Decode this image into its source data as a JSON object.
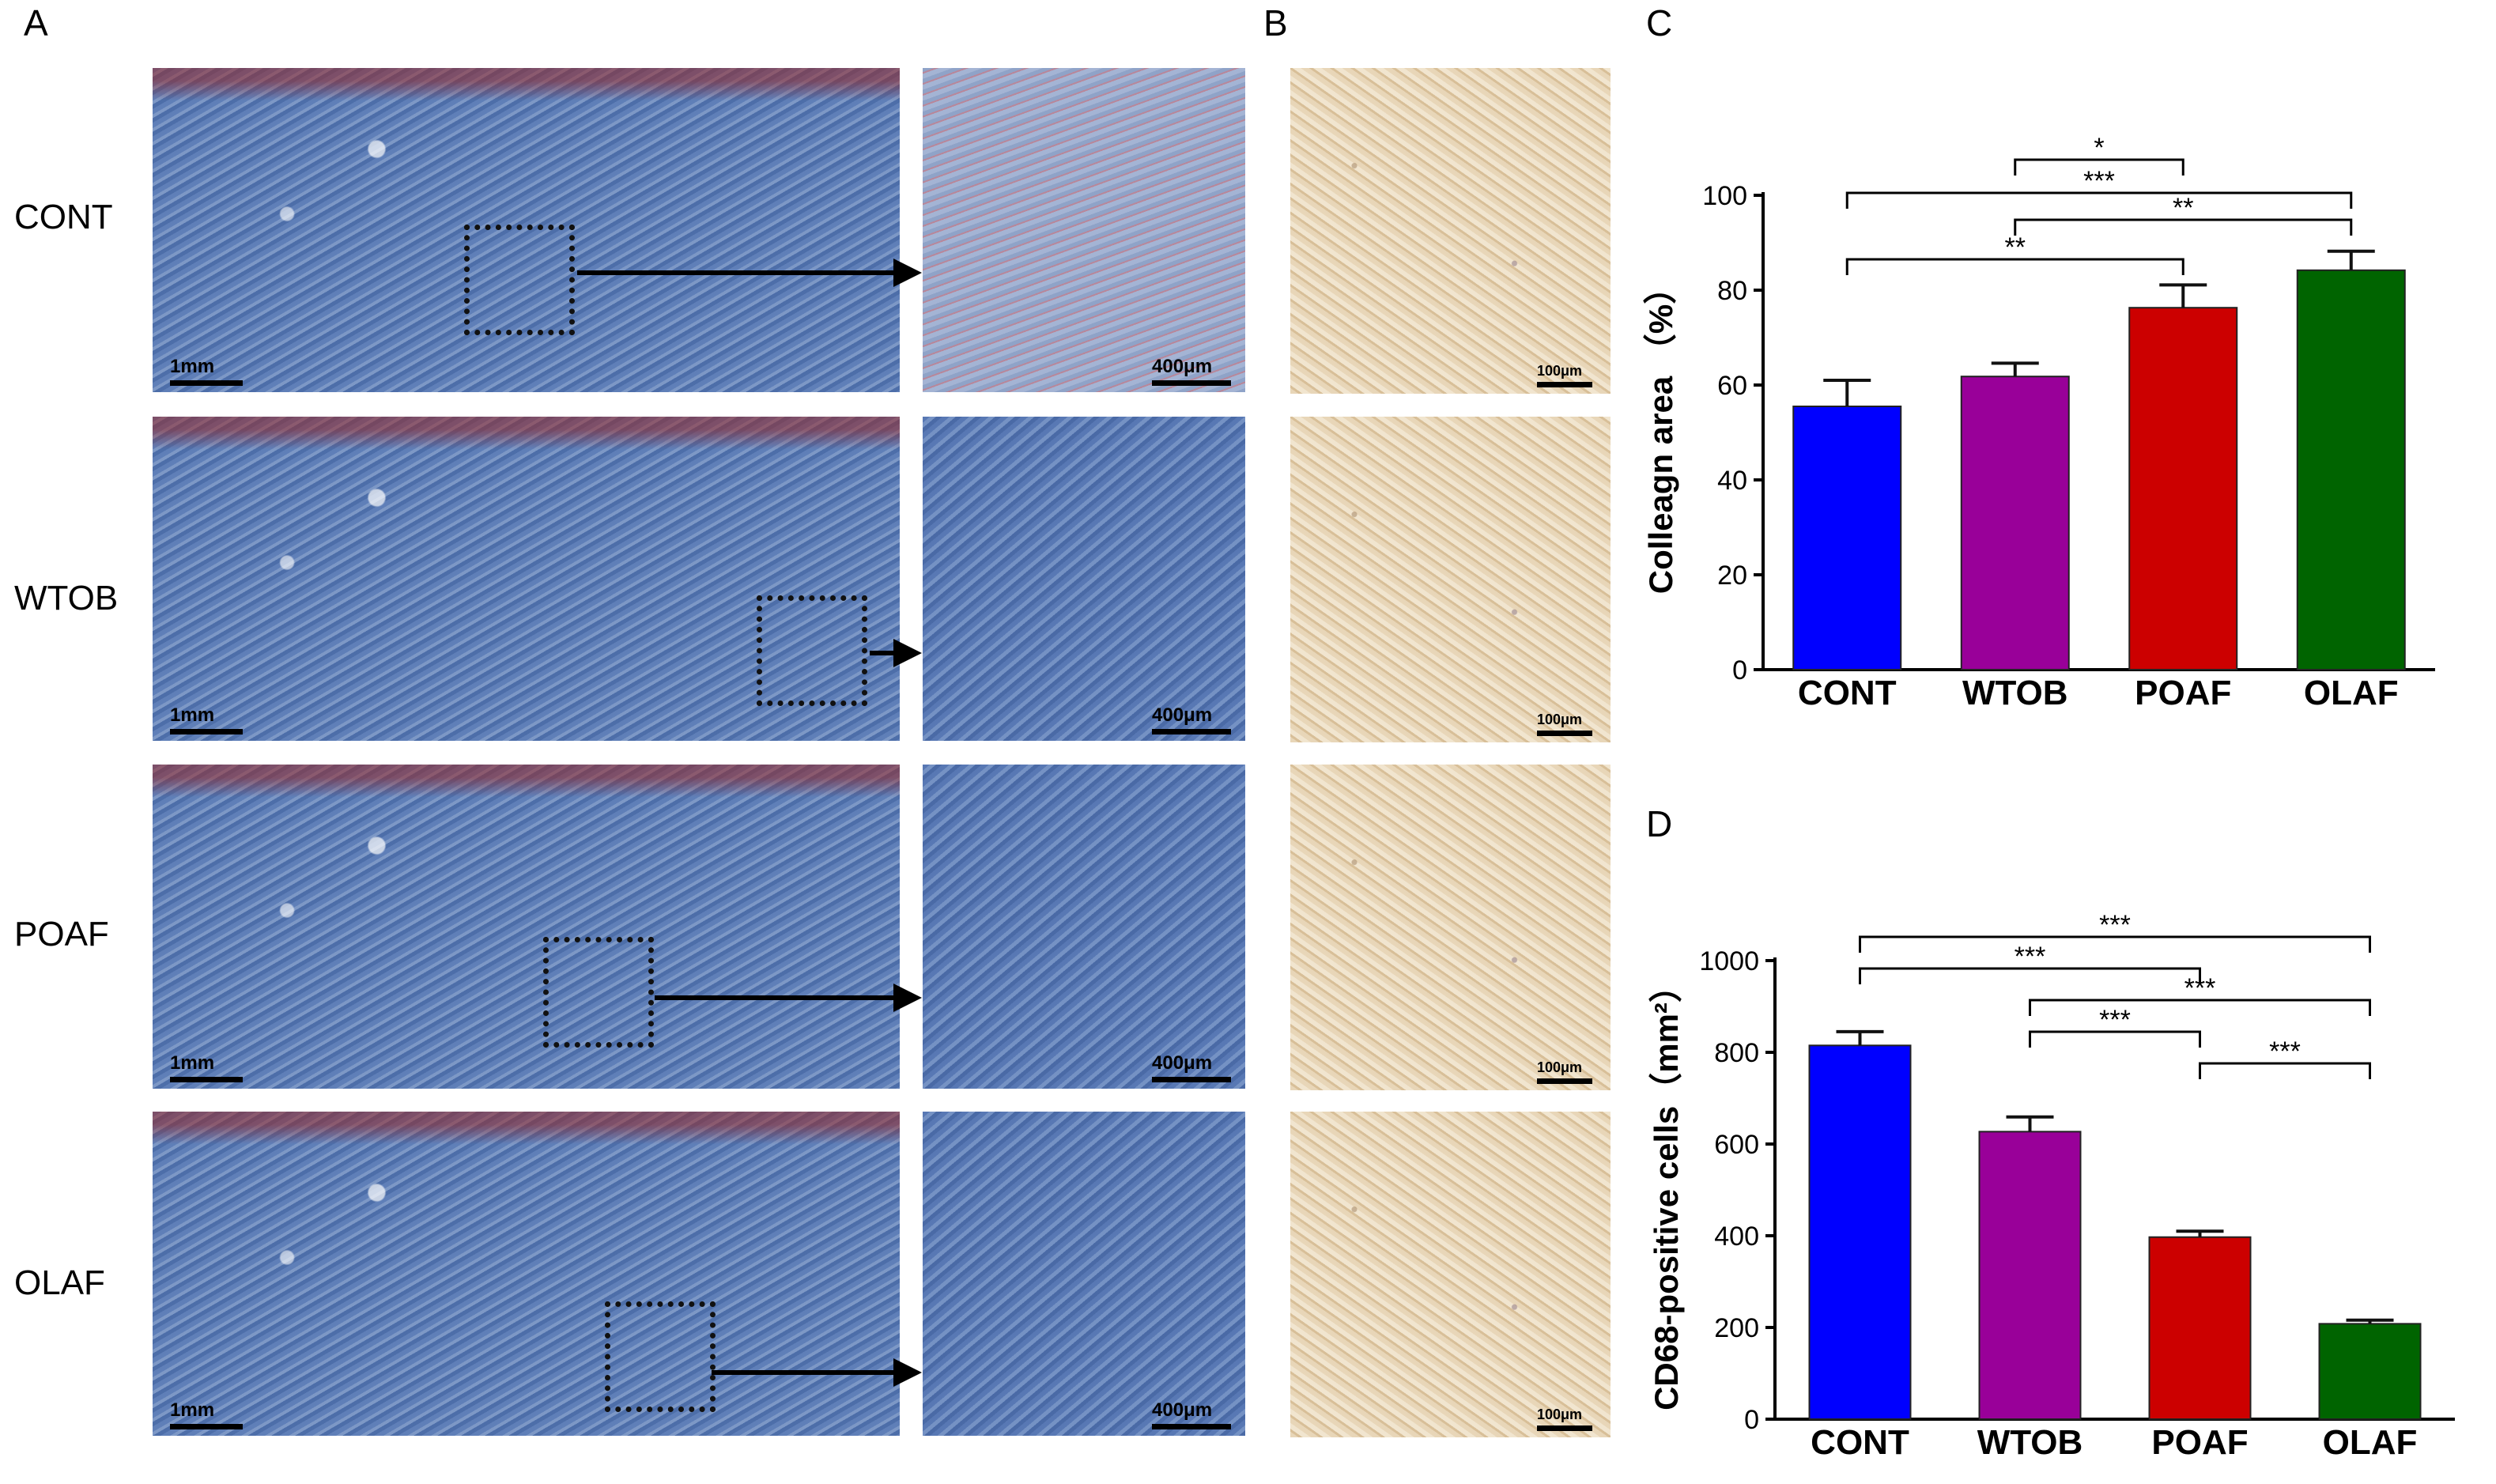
{
  "panels": {
    "a": "A",
    "b": "B",
    "c": "C",
    "d": "D"
  },
  "rows": [
    {
      "label": "CONT",
      "scale_low": "1mm",
      "scale_high": "400μm",
      "scale_ihc": "100μm",
      "tone": "red"
    },
    {
      "label": "WTOB",
      "scale_low": "1mm",
      "scale_high": "400μm",
      "scale_ihc": "100μm",
      "tone": "blue"
    },
    {
      "label": "POAF",
      "scale_low": "1mm",
      "scale_high": "400μm",
      "scale_ihc": "100μm",
      "tone": "blue"
    },
    {
      "label": "OLAF",
      "scale_low": "1mm",
      "scale_high": "400μm",
      "scale_ihc": "100μm",
      "tone": "blue"
    }
  ],
  "colors": {
    "CONT": "#0000ff",
    "WTOB": "#990099",
    "POAF": "#cc0000",
    "OLAF": "#006400"
  },
  "chart_data": [
    {
      "type": "bar",
      "panel": "C",
      "categories": [
        "CONT",
        "WTOB",
        "POAF",
        "OLAF"
      ],
      "values": [
        55.5,
        61.8,
        76.3,
        84.2
      ],
      "errors": [
        5.5,
        2.8,
        4.8,
        4.0
      ],
      "ylabel": "Colleagn area （%）",
      "ylim": [
        0,
        100
      ],
      "yticks": [
        0,
        20,
        40,
        60,
        80,
        100
      ],
      "significance": [
        {
          "from": 1,
          "to": 2,
          "stars": "*"
        },
        {
          "from": 0,
          "to": 3,
          "stars": "***"
        },
        {
          "from": 1,
          "to": 3,
          "stars": "**"
        },
        {
          "from": 0,
          "to": 2,
          "stars": "**"
        }
      ]
    },
    {
      "type": "bar",
      "panel": "D",
      "categories": [
        "CONT",
        "WTOB",
        "POAF",
        "OLAF"
      ],
      "values": [
        815,
        627,
        397,
        208
      ],
      "errors": [
        30,
        32,
        13,
        8
      ],
      "ylabel": "CD68-positive cells（mm²）",
      "ylim": [
        0,
        1000
      ],
      "yticks": [
        0,
        200,
        400,
        600,
        800,
        1000
      ],
      "significance": [
        {
          "from": 0,
          "to": 3,
          "stars": "***"
        },
        {
          "from": 0,
          "to": 2,
          "stars": "***"
        },
        {
          "from": 1,
          "to": 3,
          "stars": "***"
        },
        {
          "from": 1,
          "to": 2,
          "stars": "***"
        },
        {
          "from": 2,
          "to": 3,
          "stars": "***"
        }
      ]
    }
  ]
}
